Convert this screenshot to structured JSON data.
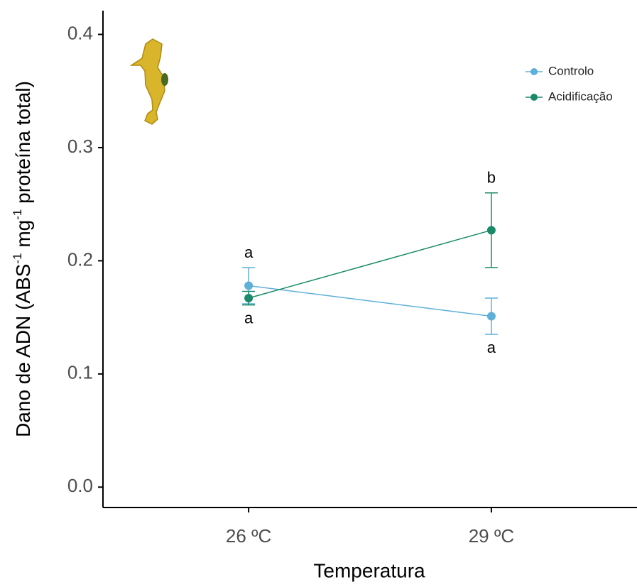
{
  "chart_data": {
    "type": "line",
    "xlabel": "Temperatura",
    "ylabel": [
      "Dano de ADN (ABS",
      "-1",
      " mg",
      "-1",
      " proteína total)"
    ],
    "categories": [
      "26 ºC",
      "29 ºC"
    ],
    "series": [
      {
        "name": "Controlo",
        "color": "#5eb0d8",
        "values": [
          0.178,
          0.151
        ],
        "errors": [
          0.016,
          0.016
        ],
        "significance_labels": [
          "a",
          "a"
        ]
      },
      {
        "name": "Acidificação",
        "color": "#1b8a68",
        "values": [
          0.167,
          0.227
        ],
        "errors": [
          0.006,
          0.033
        ],
        "significance_labels": [
          "a",
          "b"
        ]
      }
    ],
    "ylim": [
      -0.018,
      0.421
    ],
    "yticks": [
      {
        "value": 0,
        "label": "0.0"
      },
      0.1,
      0.2,
      0.3,
      0.4
    ],
    "legend": "top-right",
    "grid": false
  }
}
